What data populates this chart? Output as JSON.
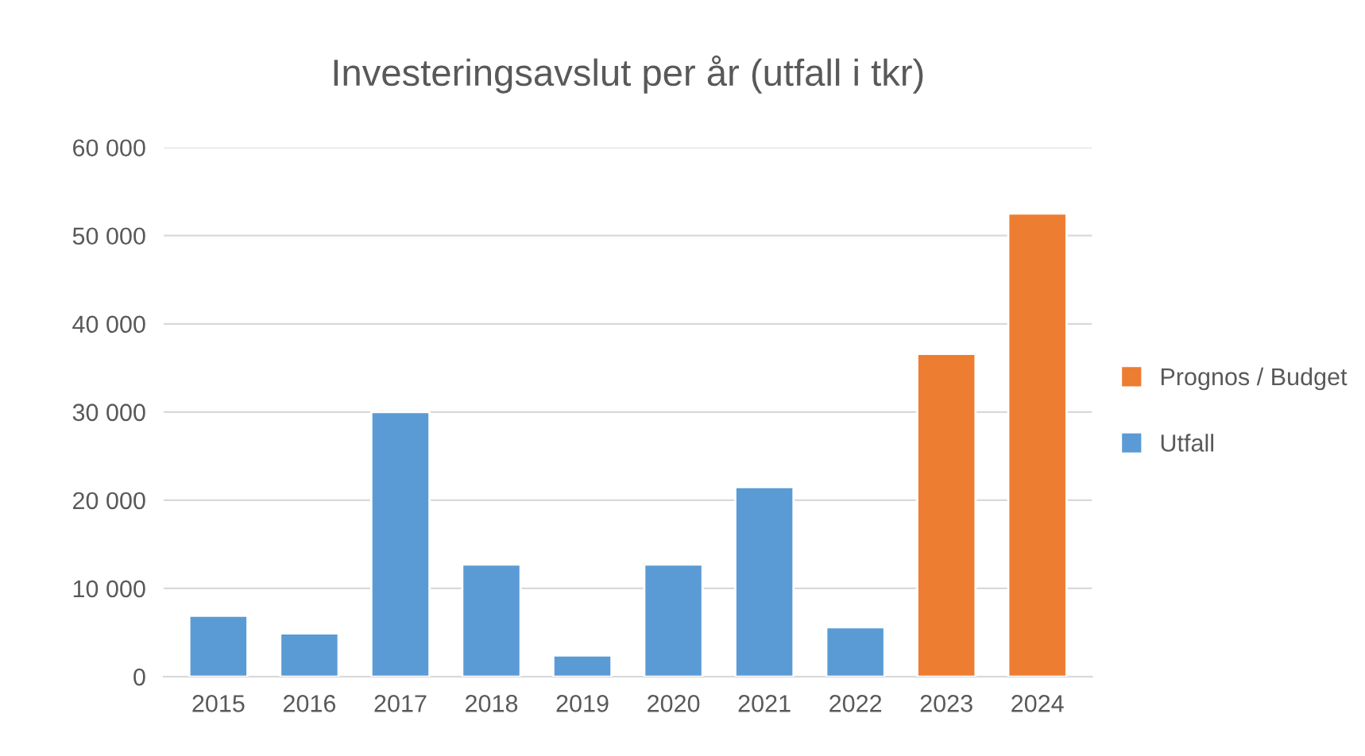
{
  "chart_data": {
    "type": "bar",
    "title": "Investeringsavslut per år (utfall i tkr)",
    "categories": [
      "2015",
      "2016",
      "2017",
      "2018",
      "2019",
      "2020",
      "2021",
      "2022",
      "2023",
      "2024"
    ],
    "series": [
      {
        "name": "Utfall",
        "color": "#5b9bd5",
        "values": [
          6900,
          4900,
          30000,
          12700,
          2400,
          12700,
          21500,
          5600,
          null,
          null
        ]
      },
      {
        "name": "Prognos / Budget",
        "color": "#ed7d31",
        "values": [
          null,
          null,
          null,
          null,
          null,
          null,
          null,
          null,
          36600,
          52500
        ]
      }
    ],
    "ylim": [
      0,
      60000
    ],
    "yticks": [
      {
        "value": 0,
        "label": "0"
      },
      {
        "value": 10000,
        "label": "10 000"
      },
      {
        "value": 20000,
        "label": "20 000"
      },
      {
        "value": 30000,
        "label": "30 000"
      },
      {
        "value": 40000,
        "label": "40 000"
      },
      {
        "value": 50000,
        "label": "50 000"
      },
      {
        "value": 60000,
        "label": "60 000"
      }
    ],
    "grid": "y",
    "legend": "right"
  }
}
